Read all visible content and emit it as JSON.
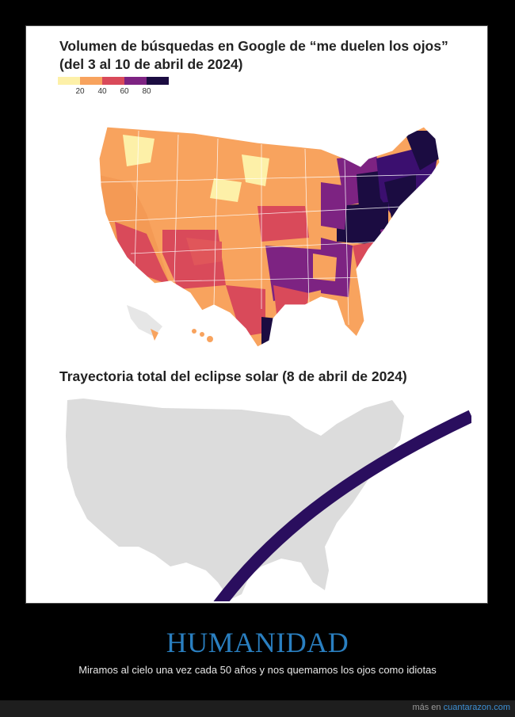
{
  "chart1": {
    "title": "Volumen de búsquedas en Google de “me duelen los ojos” (del 3 al 10 de abril de 2024)",
    "legend_ticks": [
      "20",
      "40",
      "60",
      "80"
    ],
    "legend_colors": [
      "#fdf0a8",
      "#f8a35e",
      "#d94a5a",
      "#7d2382",
      "#1b0c41"
    ]
  },
  "chart2": {
    "title": "Trayectoria total del eclipse solar (8 de abril de 2024)",
    "land_color": "#dcdcdc",
    "path_color": "#2a0e5e"
  },
  "caption": {
    "title": "HUMANIDAD",
    "subtitle": "Miramos al cielo una vez cada 50 años y nos quemamos los ojos como idiotas"
  },
  "footer": {
    "prefix": "más en",
    "site": "cuantarazon.com"
  }
}
